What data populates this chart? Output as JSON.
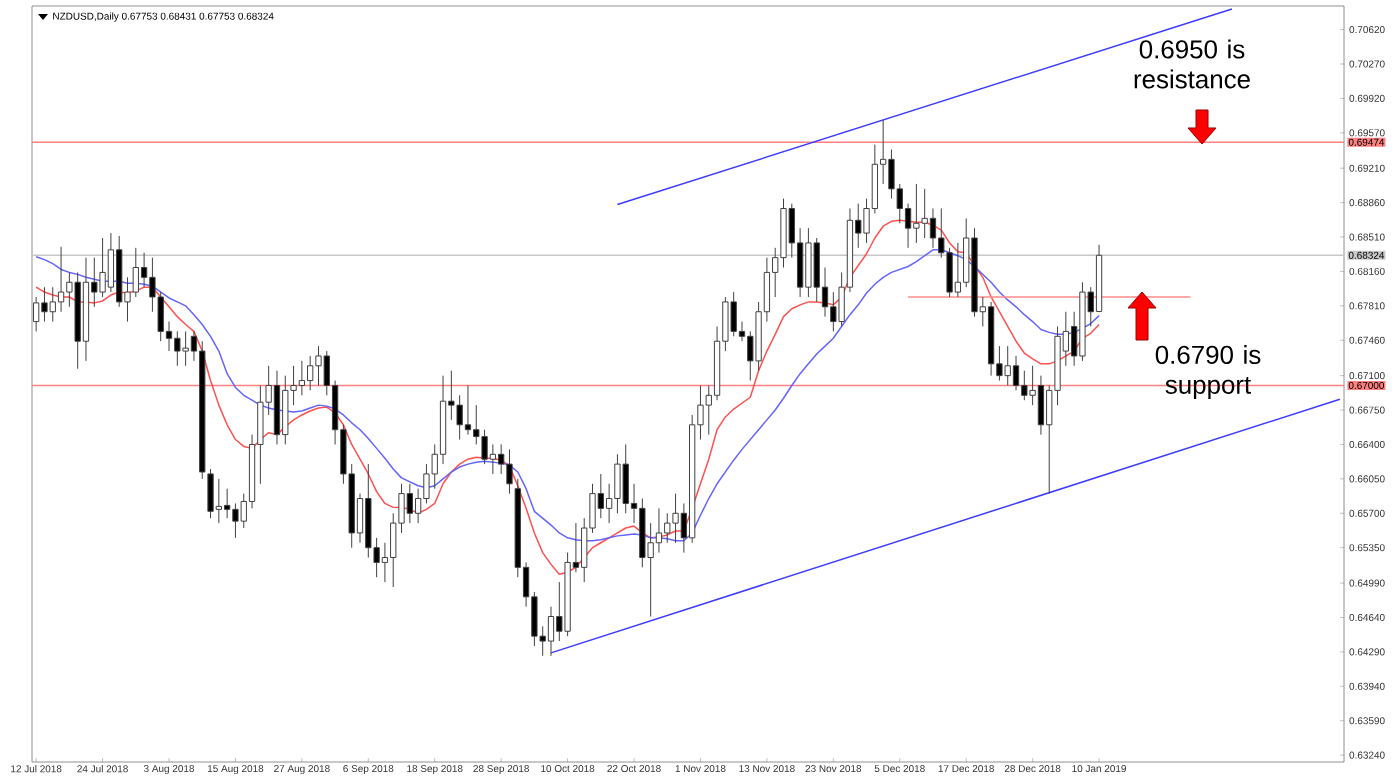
{
  "chart_data": {
    "type": "candlestick",
    "title": "NZDUSD,Daily 0.67753 0.68431 0.67753 0.68324",
    "categories": [
      "12 Jul 2018",
      null,
      null,
      null,
      null,
      null,
      null,
      null,
      "24 Jul 2018",
      null,
      null,
      null,
      null,
      null,
      null,
      null,
      "3 Aug 2018",
      null,
      null,
      null,
      null,
      null,
      null,
      null,
      "15 Aug 2018",
      null,
      null,
      null,
      null,
      null,
      null,
      null,
      "27 Aug 2018",
      null,
      null,
      null,
      null,
      null,
      null,
      null,
      "6 Sep 2018",
      null,
      null,
      null,
      null,
      null,
      null,
      null,
      "18 Sep 2018",
      null,
      null,
      null,
      null,
      null,
      null,
      null,
      "28 Sep 2018",
      null,
      null,
      null,
      null,
      null,
      null,
      null,
      "10 Oct 2018",
      null,
      null,
      null,
      null,
      null,
      null,
      null,
      "22 Oct 2018",
      null,
      null,
      null,
      null,
      null,
      null,
      null,
      "1 Nov 2018",
      null,
      null,
      null,
      null,
      null,
      null,
      null,
      "13 Nov 2018",
      null,
      null,
      null,
      null,
      null,
      null,
      null,
      "23 Nov 2018",
      null,
      null,
      null,
      null,
      null,
      null,
      null,
      "5 Dec 2018",
      null,
      null,
      null,
      null,
      null,
      null,
      null,
      "17 Dec 2018",
      null,
      null,
      null,
      null,
      null,
      null,
      null,
      "28 Dec 2018",
      null,
      null,
      null,
      null,
      null,
      null,
      null,
      "10 Jan 2019",
      null,
      null,
      null,
      null,
      null,
      null,
      null,
      null,
      null,
      null,
      null,
      null,
      null,
      null,
      null,
      null,
      null,
      null,
      null,
      null,
      null,
      null,
      null,
      null,
      null,
      null,
      null,
      null,
      null
    ],
    "ohlc": [
      [
        0.6765,
        0.679,
        0.6755,
        0.6784
      ],
      [
        0.6784,
        0.68,
        0.6765,
        0.6775
      ],
      [
        0.6775,
        0.68,
        0.6765,
        0.6785
      ],
      [
        0.6785,
        0.6841,
        0.6775,
        0.6795
      ],
      [
        0.6795,
        0.6815,
        0.678,
        0.6805
      ],
      [
        0.6805,
        0.6815,
        0.6717,
        0.6745
      ],
      [
        0.6745,
        0.683,
        0.6725,
        0.6805
      ],
      [
        0.6805,
        0.683,
        0.678,
        0.6795
      ],
      [
        0.6795,
        0.685,
        0.679,
        0.6815
      ],
      [
        0.68,
        0.6855,
        0.6795,
        0.6838
      ],
      [
        0.6838,
        0.6852,
        0.678,
        0.6785
      ],
      [
        0.6785,
        0.681,
        0.6765,
        0.6795
      ],
      [
        0.6795,
        0.684,
        0.679,
        0.682
      ],
      [
        0.682,
        0.6835,
        0.68,
        0.681
      ],
      [
        0.681,
        0.683,
        0.6775,
        0.679
      ],
      [
        0.679,
        0.6795,
        0.6745,
        0.6755
      ],
      [
        0.6755,
        0.6765,
        0.6735,
        0.6748
      ],
      [
        0.6748,
        0.6755,
        0.672,
        0.6735
      ],
      [
        0.6735,
        0.6755,
        0.672,
        0.6738
      ],
      [
        0.675,
        0.6755,
        0.6725,
        0.6735
      ],
      [
        0.6735,
        0.6745,
        0.6605,
        0.6612
      ],
      [
        0.661,
        0.6615,
        0.6565,
        0.6572
      ],
      [
        0.6574,
        0.6605,
        0.656,
        0.6577
      ],
      [
        0.6578,
        0.6595,
        0.6565,
        0.6574
      ],
      [
        0.6574,
        0.658,
        0.6545,
        0.6562
      ],
      [
        0.6562,
        0.659,
        0.6555,
        0.6582
      ],
      [
        0.6582,
        0.665,
        0.6575,
        0.664
      ],
      [
        0.664,
        0.67,
        0.66,
        0.6683
      ],
      [
        0.6683,
        0.672,
        0.667,
        0.67
      ],
      [
        0.67,
        0.6715,
        0.664,
        0.665
      ],
      [
        0.665,
        0.671,
        0.664,
        0.6695
      ],
      [
        0.6695,
        0.672,
        0.668,
        0.67
      ],
      [
        0.67,
        0.6725,
        0.669,
        0.6705
      ],
      [
        0.6705,
        0.673,
        0.6695,
        0.672
      ],
      [
        0.672,
        0.674,
        0.67,
        0.673
      ],
      [
        0.673,
        0.6735,
        0.669,
        0.67
      ],
      [
        0.67,
        0.6705,
        0.664,
        0.6655
      ],
      [
        0.6655,
        0.666,
        0.66,
        0.661
      ],
      [
        0.661,
        0.662,
        0.6535,
        0.655
      ],
      [
        0.655,
        0.659,
        0.654,
        0.6585
      ],
      [
        0.6585,
        0.662,
        0.6525,
        0.6535
      ],
      [
        0.6535,
        0.6545,
        0.6505,
        0.652
      ],
      [
        0.652,
        0.654,
        0.65,
        0.6525
      ],
      [
        0.6525,
        0.657,
        0.6495,
        0.656
      ],
      [
        0.656,
        0.66,
        0.655,
        0.659
      ],
      [
        0.659,
        0.66,
        0.656,
        0.657
      ],
      [
        0.657,
        0.6595,
        0.656,
        0.6585
      ],
      [
        0.6585,
        0.662,
        0.658,
        0.661
      ],
      [
        0.661,
        0.664,
        0.6595,
        0.663
      ],
      [
        0.663,
        0.671,
        0.662,
        0.6684
      ],
      [
        0.6684,
        0.6715,
        0.6665,
        0.668
      ],
      [
        0.668,
        0.669,
        0.6645,
        0.666
      ],
      [
        0.666,
        0.67,
        0.665,
        0.6655
      ],
      [
        0.6655,
        0.668,
        0.664,
        0.6648
      ],
      [
        0.6648,
        0.6655,
        0.662,
        0.6625
      ],
      [
        0.6625,
        0.664,
        0.661,
        0.663
      ],
      [
        0.663,
        0.664,
        0.661,
        0.662
      ],
      [
        0.662,
        0.6635,
        0.659,
        0.66
      ],
      [
        0.6595,
        0.6605,
        0.6505,
        0.6515
      ],
      [
        0.6515,
        0.652,
        0.6475,
        0.6485
      ],
      [
        0.6485,
        0.649,
        0.6435,
        0.6445
      ],
      [
        0.6445,
        0.6455,
        0.6425,
        0.644
      ],
      [
        0.644,
        0.6475,
        0.6425,
        0.6465
      ],
      [
        0.6465,
        0.65,
        0.644,
        0.645
      ],
      [
        0.645,
        0.653,
        0.6445,
        0.652
      ],
      [
        0.652,
        0.656,
        0.651,
        0.6515
      ],
      [
        0.6515,
        0.6565,
        0.65,
        0.6555
      ],
      [
        0.6555,
        0.66,
        0.655,
        0.659
      ],
      [
        0.659,
        0.661,
        0.6565,
        0.6575
      ],
      [
        0.6575,
        0.66,
        0.656,
        0.6585
      ],
      [
        0.6585,
        0.663,
        0.657,
        0.662
      ],
      [
        0.662,
        0.664,
        0.657,
        0.658
      ],
      [
        0.658,
        0.66,
        0.656,
        0.6575
      ],
      [
        0.6575,
        0.6585,
        0.6515,
        0.6525
      ],
      [
        0.6525,
        0.656,
        0.6465,
        0.654
      ],
      [
        0.654,
        0.6575,
        0.653,
        0.655
      ],
      [
        0.655,
        0.657,
        0.654,
        0.656
      ],
      [
        0.656,
        0.659,
        0.654,
        0.657
      ],
      [
        0.657,
        0.658,
        0.653,
        0.6545
      ],
      [
        0.6545,
        0.667,
        0.654,
        0.666
      ],
      [
        0.666,
        0.67,
        0.6645,
        0.668
      ],
      [
        0.668,
        0.67,
        0.665,
        0.669
      ],
      [
        0.669,
        0.676,
        0.6685,
        0.6745
      ],
      [
        0.6745,
        0.679,
        0.6735,
        0.6785
      ],
      [
        0.6785,
        0.6795,
        0.675,
        0.6755
      ],
      [
        0.6755,
        0.6765,
        0.6745,
        0.675
      ],
      [
        0.675,
        0.6755,
        0.6705,
        0.6725
      ],
      [
        0.6725,
        0.6785,
        0.6715,
        0.6775
      ],
      [
        0.6775,
        0.683,
        0.6765,
        0.6815
      ],
      [
        0.6815,
        0.684,
        0.679,
        0.683
      ],
      [
        0.683,
        0.689,
        0.682,
        0.688
      ],
      [
        0.688,
        0.6885,
        0.683,
        0.6845
      ],
      [
        0.6845,
        0.686,
        0.679,
        0.68
      ],
      [
        0.68,
        0.686,
        0.679,
        0.6845
      ],
      [
        0.6845,
        0.685,
        0.6785,
        0.68
      ],
      [
        0.68,
        0.682,
        0.677,
        0.678
      ],
      [
        0.678,
        0.6795,
        0.6755,
        0.6765
      ],
      [
        0.6765,
        0.6815,
        0.676,
        0.68
      ],
      [
        0.68,
        0.688,
        0.6795,
        0.6868
      ],
      [
        0.6868,
        0.6885,
        0.684,
        0.6855
      ],
      [
        0.6855,
        0.689,
        0.6845,
        0.688
      ],
      [
        0.688,
        0.6945,
        0.6875,
        0.6925
      ],
      [
        0.6925,
        0.697,
        0.6905,
        0.693
      ],
      [
        0.693,
        0.694,
        0.689,
        0.69
      ],
      [
        0.69,
        0.6905,
        0.6865,
        0.688
      ],
      [
        0.688,
        0.6885,
        0.684,
        0.686
      ],
      [
        0.686,
        0.6905,
        0.6845,
        0.6865
      ],
      [
        0.6865,
        0.69,
        0.685,
        0.687
      ],
      [
        0.687,
        0.688,
        0.684,
        0.685
      ],
      [
        0.685,
        0.688,
        0.683,
        0.6835
      ],
      [
        0.6835,
        0.684,
        0.679,
        0.6795
      ],
      [
        0.6795,
        0.6845,
        0.679,
        0.6805
      ],
      [
        0.6805,
        0.687,
        0.68,
        0.685
      ],
      [
        0.685,
        0.686,
        0.677,
        0.6775
      ],
      [
        0.6775,
        0.679,
        0.676,
        0.678
      ],
      [
        0.678,
        0.6785,
        0.671,
        0.6722
      ],
      [
        0.6722,
        0.674,
        0.6705,
        0.671
      ],
      [
        0.671,
        0.674,
        0.67,
        0.672
      ],
      [
        0.672,
        0.673,
        0.6695,
        0.67
      ],
      [
        0.67,
        0.6715,
        0.6685,
        0.669
      ],
      [
        0.669,
        0.672,
        0.668,
        0.6695
      ],
      [
        0.67,
        0.671,
        0.665,
        0.666
      ],
      [
        0.666,
        0.67,
        0.659,
        0.6695
      ],
      [
        0.6695,
        0.676,
        0.668,
        0.675
      ],
      [
        0.6735,
        0.6775,
        0.672,
        0.6755
      ],
      [
        0.676,
        0.6775,
        0.672,
        0.673
      ],
      [
        0.673,
        0.6805,
        0.6725,
        0.6795
      ],
      [
        0.6795,
        0.68,
        0.676,
        0.6775
      ],
      [
        0.67753,
        0.68431,
        0.67753,
        0.68324
      ],
      null,
      null,
      null,
      null,
      null,
      null,
      null,
      null,
      null,
      null,
      null,
      null,
      null,
      null,
      null,
      null,
      null,
      null,
      null,
      null,
      null,
      null,
      null,
      null,
      null,
      null,
      null,
      null,
      null
    ],
    "series": [
      {
        "type": "line",
        "color": "#ff5050",
        "values": [
          0.68,
          0.6795,
          0.6792,
          0.679,
          0.679,
          0.6785,
          0.6785,
          0.6784,
          0.6786,
          0.6792,
          0.6795,
          0.6794,
          0.6796,
          0.68,
          0.68,
          0.679,
          0.678,
          0.677,
          0.6762,
          0.6755,
          0.6735,
          0.6705,
          0.668,
          0.666,
          0.6645,
          0.6638,
          0.6636,
          0.6645,
          0.6652,
          0.665,
          0.6658,
          0.6665,
          0.667,
          0.6674,
          0.6677,
          0.6678,
          0.6672,
          0.666,
          0.664,
          0.6625,
          0.661,
          0.6592,
          0.658,
          0.6576,
          0.6576,
          0.6574,
          0.657,
          0.6574,
          0.658,
          0.66,
          0.6612,
          0.662,
          0.6625,
          0.6627,
          0.6626,
          0.6626,
          0.6624,
          0.6618,
          0.6598,
          0.6575,
          0.655,
          0.653,
          0.6518,
          0.6508,
          0.651,
          0.6515,
          0.6525,
          0.6535,
          0.654,
          0.6545,
          0.655,
          0.6555,
          0.6557,
          0.655,
          0.6545,
          0.6546,
          0.6548,
          0.6552,
          0.6552,
          0.6575,
          0.66,
          0.6625,
          0.6655,
          0.6668,
          0.6676,
          0.6682,
          0.6688,
          0.6715,
          0.6735,
          0.6752,
          0.677,
          0.6778,
          0.6782,
          0.6785,
          0.6785,
          0.6784,
          0.6782,
          0.679,
          0.681,
          0.6822,
          0.6834,
          0.685,
          0.6862,
          0.6867,
          0.6868,
          0.6867,
          0.6866,
          0.6866,
          0.6863,
          0.6858,
          0.6845,
          0.6836,
          0.6835,
          0.6822,
          0.681,
          0.679,
          0.6775,
          0.676,
          0.6745,
          0.6733,
          0.6727,
          0.6722,
          0.6722,
          0.6725,
          0.673,
          0.6735,
          0.6748,
          0.6753,
          0.6762,
          null,
          null,
          null,
          null,
          null,
          null,
          null,
          null,
          null,
          null,
          null,
          null,
          null,
          null,
          null,
          null,
          null,
          null,
          null,
          null,
          null,
          null,
          null,
          null,
          null,
          null,
          null,
          null,
          null
        ]
      },
      {
        "type": "line",
        "color": "#6464ff",
        "values": [
          0.6831,
          0.6828,
          0.6824,
          0.6818,
          0.6815,
          0.6813,
          0.681,
          0.6808,
          0.6806,
          0.6806,
          0.6806,
          0.6804,
          0.6804,
          0.6803,
          0.6801,
          0.6795,
          0.6789,
          0.6785,
          0.6781,
          0.6772,
          0.6762,
          0.675,
          0.6735,
          0.6712,
          0.6698,
          0.669,
          0.6685,
          0.668,
          0.6677,
          0.6675,
          0.6674,
          0.6673,
          0.6674,
          0.6677,
          0.668,
          0.6679,
          0.6676,
          0.667,
          0.6662,
          0.6655,
          0.6646,
          0.6636,
          0.6626,
          0.6615,
          0.6606,
          0.6602,
          0.6598,
          0.6596,
          0.6598,
          0.6605,
          0.6612,
          0.6617,
          0.662,
          0.6622,
          0.6623,
          0.6622,
          0.6621,
          0.6619,
          0.6612,
          0.6595,
          0.6572,
          0.6565,
          0.6558,
          0.655,
          0.6545,
          0.6543,
          0.6542,
          0.6542,
          0.6543,
          0.6545,
          0.6547,
          0.6548,
          0.6549,
          0.6548,
          0.6545,
          0.6545,
          0.6544,
          0.6542,
          0.6542,
          0.655,
          0.6568,
          0.6585,
          0.66,
          0.6612,
          0.6624,
          0.6635,
          0.6645,
          0.6655,
          0.6665,
          0.6675,
          0.6687,
          0.67,
          0.6712,
          0.6722,
          0.6732,
          0.674,
          0.6748,
          0.676,
          0.6772,
          0.6782,
          0.6794,
          0.6803,
          0.681,
          0.6815,
          0.6818,
          0.6821,
          0.6826,
          0.6832,
          0.6838,
          0.6838,
          0.6835,
          0.6832,
          0.6828,
          0.6821,
          0.6813,
          0.6805,
          0.6795,
          0.6787,
          0.678,
          0.6772,
          0.6765,
          0.6757,
          0.6754,
          0.6752,
          0.6752,
          0.6754,
          0.6758,
          0.6763,
          0.6771,
          null,
          null,
          null,
          null,
          null,
          null,
          null,
          null,
          null,
          null,
          null,
          null,
          null,
          null,
          null,
          null,
          null,
          null,
          null,
          null,
          null,
          null,
          null,
          null,
          null,
          null,
          null,
          null,
          null
        ]
      },
      {
        "type": "line",
        "color": "#3c3cff",
        "values": [
          null,
          null,
          null,
          null,
          null,
          null,
          null,
          null,
          null,
          null,
          null,
          null,
          null,
          null,
          null,
          null,
          null,
          null,
          null,
          null,
          null,
          null,
          null,
          null,
          null,
          null,
          null,
          null,
          null,
          null,
          null,
          null,
          null,
          null,
          null,
          null,
          null,
          null,
          null,
          null,
          null,
          null,
          null,
          null,
          null,
          null,
          null,
          null,
          null,
          null,
          null,
          null,
          null,
          null,
          null,
          null,
          null,
          null,
          null,
          null,
          null,
          null,
          null,
          null,
          null,
          null,
          null,
          null,
          null,
          null,
          0.6884,
          null,
          null,
          null,
          null,
          null,
          null,
          null,
          null,
          null,
          null,
          null,
          null,
          null,
          null,
          null,
          null,
          null,
          null,
          null,
          null,
          null,
          null,
          null,
          null,
          null,
          null,
          null,
          null,
          null,
          null,
          null,
          null,
          null,
          null,
          null,
          null,
          null,
          null,
          null,
          null,
          null,
          null,
          null,
          null,
          null,
          null,
          null,
          null,
          null,
          null,
          null,
          null,
          null,
          null,
          null,
          null,
          null,
          null,
          null,
          null,
          null,
          null,
          null,
          null,
          null,
          null,
          null,
          null,
          null,
          null,
          null,
          null,
          null,
          0.7083,
          null,
          null,
          null,
          null,
          null,
          null,
          null,
          null,
          null,
          null,
          null,
          null,
          null
        ]
      },
      {
        "type": "line",
        "color": "#3c3cff",
        "values": [
          null,
          null,
          null,
          null,
          null,
          null,
          null,
          null,
          null,
          null,
          null,
          null,
          null,
          null,
          null,
          null,
          null,
          null,
          null,
          null,
          null,
          null,
          null,
          null,
          null,
          null,
          null,
          null,
          null,
          null,
          null,
          null,
          null,
          null,
          null,
          null,
          null,
          null,
          null,
          null,
          null,
          null,
          null,
          null,
          null,
          null,
          null,
          null,
          null,
          null,
          null,
          null,
          null,
          null,
          null,
          null,
          null,
          null,
          null,
          null,
          null,
          null,
          0.6428,
          null,
          null,
          null,
          null,
          null,
          null,
          null,
          null,
          null,
          null,
          null,
          null,
          null,
          null,
          null,
          null,
          null,
          null,
          null,
          null,
          null,
          null,
          null,
          null,
          null,
          null,
          null,
          null,
          null,
          null,
          null,
          null,
          null,
          null,
          null,
          null,
          null,
          null,
          null,
          null,
          null,
          null,
          null,
          null,
          null,
          null,
          null,
          null,
          null,
          null,
          null,
          null,
          null,
          null,
          null,
          null,
          null,
          null,
          null,
          null,
          null,
          null,
          null,
          null,
          null,
          null,
          null,
          null,
          null,
          null,
          null,
          null,
          null,
          null,
          null,
          null,
          null,
          null,
          null,
          null,
          null,
          null,
          null,
          null,
          null,
          null,
          null,
          null,
          null,
          null,
          null,
          null,
          null,
          null,
          0.6686
        ]
      },
      {
        "type": "line",
        "color": "#ff8c8c",
        "values": [
          null,
          null,
          null,
          null,
          null,
          null,
          null,
          null,
          null,
          null,
          null,
          null,
          null,
          null,
          null,
          null,
          null,
          null,
          null,
          null,
          null,
          null,
          null,
          null,
          null,
          null,
          null,
          null,
          null,
          null,
          null,
          null,
          null,
          null,
          null,
          null,
          null,
          null,
          null,
          null,
          null,
          null,
          null,
          null,
          null,
          null,
          null,
          null,
          null,
          null,
          null,
          null,
          null,
          null,
          null,
          null,
          null,
          null,
          null,
          null,
          null,
          null,
          null,
          null,
          null,
          null,
          null,
          null,
          null,
          null,
          null,
          null,
          null,
          null,
          null,
          null,
          null,
          null,
          null,
          null,
          null,
          null,
          null,
          null,
          null,
          null,
          null,
          null,
          null,
          null,
          null,
          null,
          null,
          null,
          null,
          null,
          null,
          null,
          null,
          null,
          null,
          null,
          null,
          null,
          null,
          0.679,
          null,
          null,
          null,
          null,
          null,
          null,
          null,
          null,
          null,
          null,
          null,
          null,
          null,
          null,
          null,
          null,
          null,
          null,
          null,
          null,
          null,
          null,
          null,
          null,
          null,
          null,
          null,
          null,
          null,
          null,
          null,
          null,
          null,
          0.679,
          null,
          null,
          null,
          null,
          null,
          null,
          null,
          null,
          null,
          null,
          null,
          null,
          null,
          null,
          null,
          null,
          null,
          null
        ]
      }
    ],
    "ylim": [
      0.6317,
      0.7086
    ],
    "yticks": [
      {
        "value": 0.7062,
        "label": "0.70620"
      },
      {
        "value": 0.7027,
        "label": "0.70270"
      },
      {
        "value": 0.6992,
        "label": "0.69920"
      },
      {
        "value": 0.6957,
        "label": "0.69570"
      },
      {
        "value": 0.6921,
        "label": "0.69210"
      },
      {
        "value": 0.6886,
        "label": "0.68860"
      },
      {
        "value": 0.6851,
        "label": "0.68510"
      },
      {
        "value": 0.6816,
        "label": "0.68160"
      },
      {
        "value": 0.6781,
        "label": "0.67810"
      },
      {
        "value": 0.6746,
        "label": "0.67460"
      },
      {
        "value": 0.671,
        "label": "0.67100"
      },
      {
        "value": 0.6675,
        "label": "0.66750"
      },
      {
        "value": 0.664,
        "label": "0.66400"
      },
      {
        "value": 0.6605,
        "label": "0.66050"
      },
      {
        "value": 0.657,
        "label": "0.65700"
      },
      {
        "value": 0.6535,
        "label": "0.65350"
      },
      {
        "value": 0.6499,
        "label": "0.64990"
      },
      {
        "value": 0.6464,
        "label": "0.64640"
      },
      {
        "value": 0.6429,
        "label": "0.64290"
      },
      {
        "value": 0.6394,
        "label": "0.63940"
      },
      {
        "value": 0.6359,
        "label": "0.63590"
      },
      {
        "value": 0.6324,
        "label": "0.63240"
      }
    ],
    "ref_lines": [
      {
        "axis": "y",
        "value": 0.69474,
        "label": "0.69474",
        "color": "#ff8080"
      },
      {
        "axis": "y",
        "value": 0.67,
        "label": "0.67000",
        "color": "#ff8080"
      },
      {
        "axis": "y",
        "value": 0.68324,
        "label": "0.68324",
        "color": "#c8c8c8"
      }
    ],
    "annotations": [
      "0.6950 is resistance",
      "0.6790 is support"
    ]
  }
}
